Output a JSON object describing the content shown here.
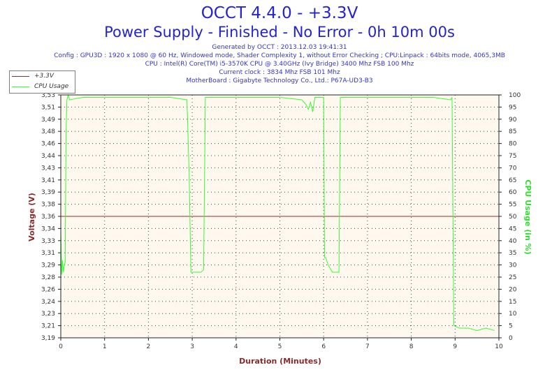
{
  "header": {
    "title": "OCCT 4.4.0 - +3.3V",
    "subtitle": "Power Supply - Finished - No Error - 0h 10m 00s",
    "generated": "Generated by OCCT : 2013.12.03 19:41:31",
    "config": "Config : GPU3D : 1920 x 1080 @ 60 Hz, Windowed mode, Shader Complexity 1, without Error Checking ; CPU:Linpack : 64bits mode, 4065,3MB",
    "cpu": "CPU : Intel(R) Core(TM) i5-3570K CPU @ 3.40GHz (Ivy Bridge) 3400 Mhz FSB 100 Mhz",
    "clock": "Current clock : 3834 Mhz FSB 101 Mhz",
    "motherboard": "MotherBoard : Gigabyte Technology Co., Ltd.: P67A-UD3-B3"
  },
  "legend": [
    {
      "label": "+3.3V",
      "color": "#9b2c2c"
    },
    {
      "label": "CPU Usage",
      "color": "#33ff33"
    }
  ],
  "chart_data": {
    "type": "line",
    "xlabel": "Duration (Minutes)",
    "ylabel_left": "Voltage (V)",
    "ylabel_right": "CPU Usage (in %)",
    "xlim": [
      0,
      10
    ],
    "x_ticks": [
      "0",
      "1",
      "2",
      "3",
      "4",
      "5",
      "6",
      "7",
      "8",
      "9",
      "10"
    ],
    "ylim_left": [
      3.19,
      3.53
    ],
    "y_ticks_left": [
      "3,19",
      "3,21",
      "3,23",
      "3,24",
      "3,26",
      "3,28",
      "3,29",
      "3,31",
      "3,33",
      "3,34",
      "3,36",
      "3,38",
      "3,39",
      "3,41",
      "3,43",
      "3,44",
      "3,46",
      "3,48",
      "3,49",
      "3,51",
      "3,53"
    ],
    "ylim_right": [
      0,
      100
    ],
    "y_ticks_right": [
      "0",
      "5",
      "10",
      "15",
      "20",
      "25",
      "30",
      "35",
      "40",
      "45",
      "50",
      "55",
      "60",
      "65",
      "70",
      "75",
      "80",
      "85",
      "90",
      "95",
      "100"
    ],
    "grid": true,
    "plot_background": "#fff8ee",
    "voltage_color": "#9b2c2c",
    "cpu_color": "#33ff33",
    "series": [
      {
        "name": "+3.3V",
        "axis": "left",
        "x": [
          0,
          10
        ],
        "values": [
          3.36,
          3.36
        ]
      },
      {
        "name": "CPU Usage",
        "axis": "right",
        "x": [
          0.0,
          0.02,
          0.04,
          0.06,
          0.08,
          0.1,
          0.12,
          0.14,
          0.17,
          0.2,
          0.5,
          1.0,
          1.5,
          2.0,
          2.5,
          2.88,
          2.93,
          2.97,
          3.1,
          3.2,
          3.26,
          3.3,
          3.5,
          4.0,
          4.5,
          5.0,
          5.5,
          5.6,
          5.65,
          5.7,
          5.75,
          5.8,
          6.0,
          6.02,
          6.05,
          6.1,
          6.2,
          6.35,
          6.38,
          6.42,
          6.6,
          7.0,
          7.5,
          8.0,
          8.5,
          8.9,
          8.93,
          8.97,
          9.1,
          9.3,
          9.5,
          9.7,
          9.9
        ],
        "values": [
          44,
          26,
          32,
          27,
          30,
          31,
          85,
          98,
          100,
          98,
          99,
          99,
          99,
          99,
          99,
          98,
          67,
          27,
          27,
          27,
          28,
          99,
          99,
          99,
          99,
          99,
          98,
          96,
          94,
          97,
          93,
          99,
          99,
          33,
          33,
          30,
          27,
          27,
          99,
          99,
          99,
          99,
          99,
          99,
          99,
          98,
          99,
          5,
          4,
          4,
          3,
          4,
          3
        ]
      }
    ]
  }
}
